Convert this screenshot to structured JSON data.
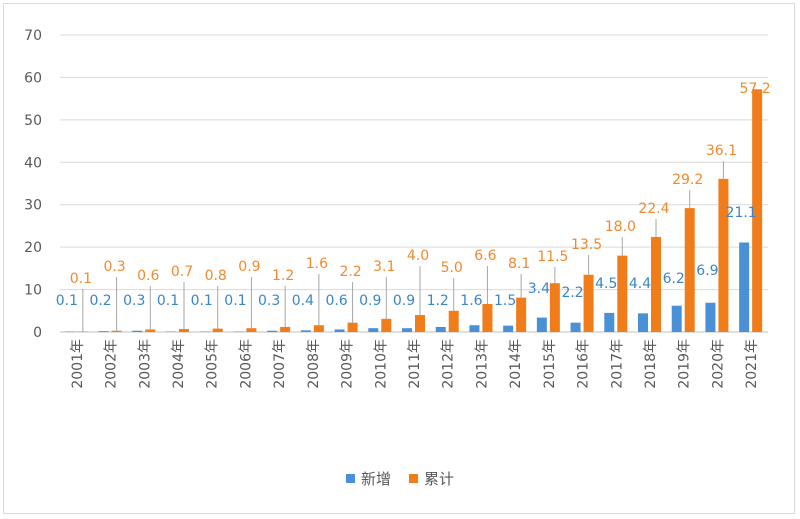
{
  "chart_data": {
    "type": "bar",
    "title": "",
    "xlabel": "",
    "ylabel": "",
    "ylim": [
      0,
      70
    ],
    "yticks": [
      "0",
      "10",
      "20",
      "30",
      "40",
      "50",
      "60",
      "70"
    ],
    "grid": true,
    "legend_position": "bottom",
    "categories": [
      "2001年",
      "2002年",
      "2003年",
      "2004年",
      "2005年",
      "2006年",
      "2007年",
      "2008年",
      "2009年",
      "2010年",
      "2011年",
      "2012年",
      "2013年",
      "2014年",
      "2015年",
      "2016年",
      "2017年",
      "2018年",
      "2019年",
      "2020年",
      "2021年"
    ],
    "series": [
      {
        "name": "新增",
        "color": "#4a90d6",
        "values": [
          0.1,
          0.2,
          0.3,
          0.1,
          0.1,
          0.1,
          0.3,
          0.4,
          0.6,
          0.9,
          0.9,
          1.2,
          1.6,
          1.5,
          3.4,
          2.2,
          4.5,
          4.4,
          6.2,
          6.9,
          21.1
        ],
        "labels": [
          "0.1",
          "0.2",
          "0.3",
          "0.1",
          "0.1",
          "0.1",
          "0.3",
          "0.4",
          "0.6",
          "0.9",
          "0.9",
          "1.2",
          "1.6",
          "1.5",
          "3.4",
          "2.2",
          "4.5",
          "4.4",
          "6.2",
          "6.9",
          "21.1"
        ]
      },
      {
        "name": "累计",
        "color": "#f07d1a",
        "values": [
          0.1,
          0.3,
          0.6,
          0.7,
          0.8,
          0.9,
          1.2,
          1.6,
          2.2,
          3.1,
          4.0,
          5.0,
          6.6,
          8.1,
          11.5,
          13.5,
          18.0,
          22.4,
          29.2,
          36.1,
          57.2
        ],
        "labels": [
          "0.1",
          "0.3",
          "0.6",
          "0.7",
          "0.8",
          "0.9",
          "1.2",
          "1.6",
          "2.2",
          "3.1",
          "4.0",
          "5.0",
          "6.6",
          "8.1",
          "11.5",
          "13.5",
          "18.0",
          "22.4",
          "29.2",
          "36.1",
          "57.2"
        ]
      }
    ]
  }
}
